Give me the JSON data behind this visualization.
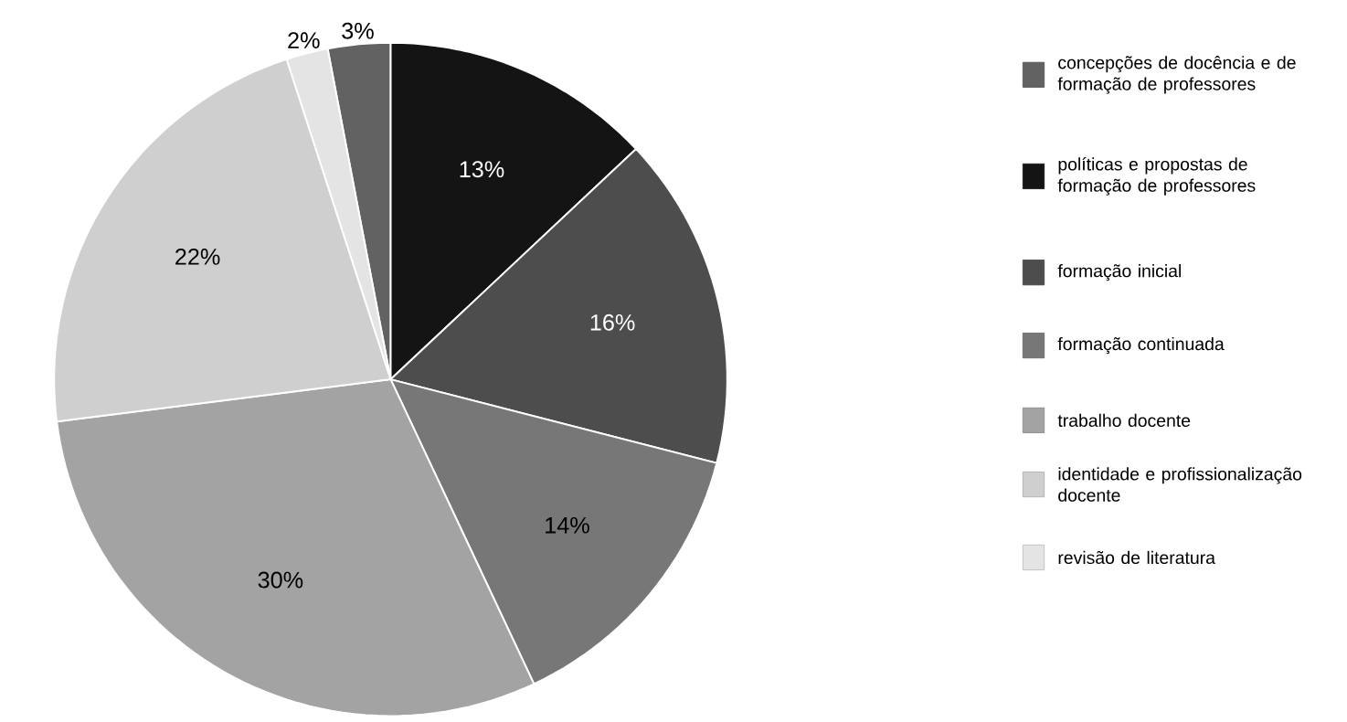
{
  "chart_data": {
    "type": "pie",
    "categories": [
      "concepções de docência e de formação de professores",
      "políticas e propostas de formação de professores",
      "formação inicial",
      "formação continuada",
      "trabalho docente",
      "identidade e profissionalização docente",
      "revisão de literatura"
    ],
    "values": [
      3,
      13,
      16,
      14,
      30,
      22,
      2
    ],
    "colors": [
      "#626262",
      "#141414",
      "#4d4d4d",
      "#777777",
      "#a3a3a3",
      "#cfcfcf",
      "#e4e4e4"
    ],
    "value_labels": [
      "3%",
      "13%",
      "16%",
      "14%",
      "30%",
      "22%",
      "2%"
    ],
    "legend": "right"
  }
}
